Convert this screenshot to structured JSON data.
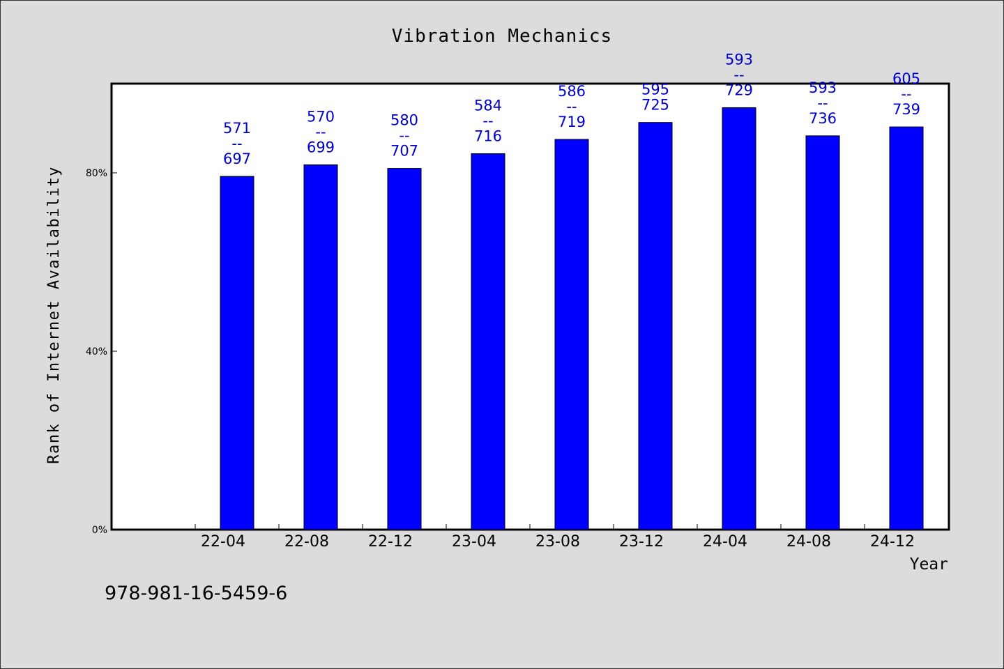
{
  "footer": {
    "code": "978-981-16-5459-6"
  },
  "colors": {
    "bar": "#0000ff",
    "label": "#0000cc",
    "background": "#dcdcdc",
    "plot": "#ffffff"
  },
  "chart_data": {
    "type": "bar",
    "title": "Vibration Mechanics",
    "xlabel": "Year",
    "ylabel": "Rank of Internet Availability",
    "categories": [
      "22-04",
      "22-08",
      "22-12",
      "23-04",
      "23-08",
      "23-12",
      "24-04",
      "24-08",
      "24-12"
    ],
    "values": [
      79.2,
      81.8,
      81.0,
      84.3,
      87.5,
      91.3,
      94.6,
      88.3,
      90.3
    ],
    "bar_labels": [
      [
        "571",
        "--",
        "697"
      ],
      [
        "570",
        "--",
        "699"
      ],
      [
        "580",
        "--",
        "707"
      ],
      [
        "584",
        "--",
        "716"
      ],
      [
        "586",
        "--",
        "719"
      ],
      [
        "595",
        "725"
      ],
      [
        "593",
        "--",
        "729"
      ],
      [
        "593",
        "--",
        "736"
      ],
      [
        "605",
        "--",
        "739"
      ]
    ],
    "yticks": [
      0,
      40,
      80
    ],
    "ytick_labels": [
      "0%",
      "40%",
      "80%"
    ],
    "ylim": [
      0,
      100
    ],
    "grid": false,
    "legend": "none"
  }
}
